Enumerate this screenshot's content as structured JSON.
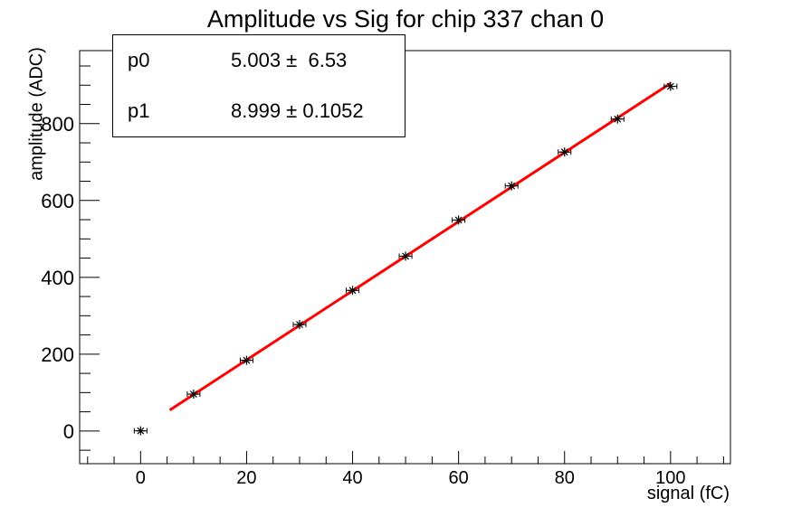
{
  "title": "Amplitude vs Sig for chip 337 chan 0",
  "stats_box": {
    "rows": [
      {
        "name": "p0",
        "value": "5.003 ±  6.53"
      },
      {
        "name": "p1",
        "value": "8.999 ± 0.1052"
      }
    ]
  },
  "colors": {
    "background": "#ffffff",
    "axis": "#000000",
    "marker": "#000000",
    "fit_line": "#ff0000"
  },
  "chart_data": {
    "type": "scatter",
    "title": "Amplitude vs Sig for chip 337 chan 0",
    "xlabel": "signal (fC)",
    "ylabel": "amplitude (ADC)",
    "x": [
      0,
      10,
      20,
      30,
      40,
      50,
      60,
      70,
      80,
      90,
      100
    ],
    "y": [
      0.5,
      96,
      184,
      277,
      366,
      455,
      549,
      638,
      726,
      812,
      897
    ],
    "x_error": 1.2,
    "marker_style": "asterisk-with-x-error-bars",
    "fit_line": {
      "p0": 5.003,
      "p0_error": 6.53,
      "p1": 8.999,
      "p1_error": 0.1052,
      "x_start": 5.5,
      "x_end": 100,
      "color": "#ff0000"
    },
    "xlim": [
      -11.5,
      111.3
    ],
    "ylim": [
      -85,
      990
    ],
    "x_major_ticks": [
      0,
      20,
      40,
      60,
      80,
      100
    ],
    "x_minor_tick_step": 5,
    "y_major_ticks": [
      0,
      200,
      400,
      600,
      800
    ],
    "y_minor_tick_step": 50,
    "grid": false,
    "legend_position": "none"
  }
}
